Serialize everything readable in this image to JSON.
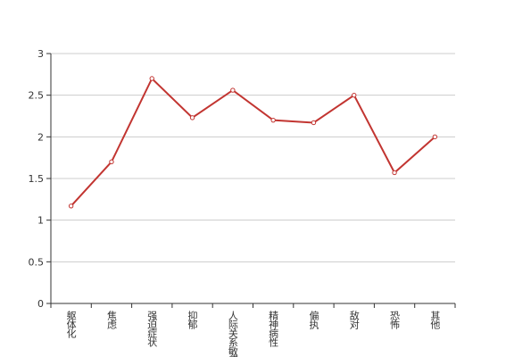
{
  "chart_data": {
    "type": "line",
    "categories": [
      "躯体化",
      "焦虑",
      "强迫症状",
      "抑郁",
      "人际关系敏感",
      "精神病性",
      "偏执",
      "敌对",
      "恐怖",
      "其他"
    ],
    "series": [
      {
        "color": "#c23531",
        "values": [
          1.17,
          1.7,
          2.7,
          2.23,
          2.56,
          2.2,
          2.17,
          2.5,
          1.57,
          2.0
        ]
      }
    ],
    "ylim": [
      0,
      3
    ],
    "yticks": [
      0,
      0.5,
      1,
      1.5,
      2,
      2.5,
      3
    ],
    "grid": true
  }
}
